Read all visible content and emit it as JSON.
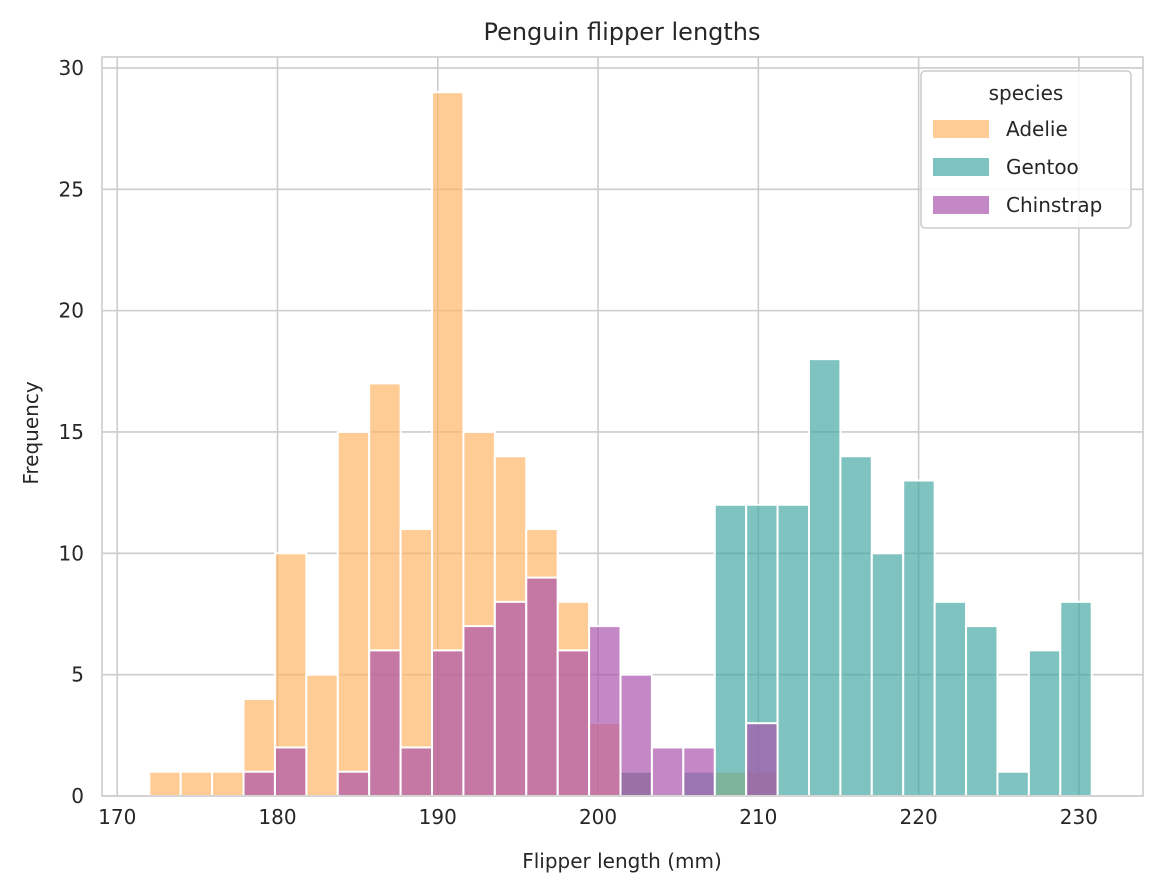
{
  "chart_data": {
    "type": "bar",
    "title": "Penguin flipper lengths",
    "xlabel": "Flipper length (mm)",
    "ylabel": "Frequency",
    "xlim": [
      169.05,
      234.0
    ],
    "ylim": [
      0,
      30.45
    ],
    "xticks": [
      "170",
      "180",
      "190",
      "200",
      "210",
      "220",
      "230"
    ],
    "yticks": [
      "0",
      "5",
      "10",
      "15",
      "20",
      "25",
      "30"
    ],
    "grid": true,
    "legend_title": "species",
    "legend_position": "top-right",
    "bin_width": 1.96,
    "bin_starts": [
      172.0,
      173.96,
      175.92,
      177.88,
      179.84,
      181.8,
      183.76,
      185.72,
      187.68,
      189.64,
      191.6,
      193.56,
      195.52,
      197.48,
      199.44,
      201.4,
      203.36,
      205.32,
      207.28,
      209.24,
      211.2,
      213.16,
      215.12,
      217.08,
      219.04,
      221.0,
      222.96,
      224.92,
      226.88,
      228.84
    ],
    "series": [
      {
        "name": "Adelie",
        "color": "#fdb462",
        "values": [
          1,
          1,
          1,
          4,
          10,
          5,
          15,
          17,
          11,
          29,
          15,
          14,
          11,
          8,
          3,
          1,
          0,
          0,
          1,
          1,
          0,
          0,
          0,
          0,
          0,
          0,
          0,
          0,
          0,
          0
        ]
      },
      {
        "name": "Gentoo",
        "color": "#41a6a1",
        "values": [
          0,
          0,
          0,
          0,
          0,
          0,
          0,
          0,
          0,
          0,
          0,
          0,
          0,
          0,
          0,
          1,
          0,
          1,
          12,
          12,
          12,
          18,
          14,
          10,
          13,
          8,
          7,
          1,
          6,
          8
        ]
      },
      {
        "name": "Chinstrap",
        "color": "#a94fab",
        "values": [
          0,
          0,
          0,
          1,
          2,
          0,
          1,
          6,
          2,
          6,
          7,
          8,
          9,
          6,
          7,
          5,
          2,
          2,
          0,
          3,
          0,
          0,
          0,
          0,
          0,
          0,
          0,
          0,
          0,
          0
        ]
      }
    ]
  }
}
